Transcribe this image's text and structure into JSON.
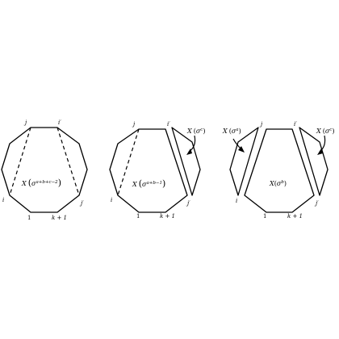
{
  "panels": [
    {
      "vertex_labels": {
        "j": "j",
        "i_prime": "i′",
        "i": "i",
        "j_prime": "j′",
        "one": "1",
        "k_plus_1": "k + 1"
      },
      "region_label": {
        "base": "X",
        "sigma": "σ",
        "exponent": "a+b+c−2"
      }
    },
    {
      "vertex_labels": {
        "j": "j",
        "i_prime": "i′",
        "i": "i",
        "j_prime": "j′",
        "one": "1",
        "k_plus_1": "k + 1"
      },
      "region_label": {
        "base": "X",
        "sigma": "σ",
        "exponent": "a+b−1"
      },
      "piece_label": {
        "base": "X",
        "sigma": "σ",
        "exponent": "c"
      }
    },
    {
      "vertex_labels": {
        "j": "j",
        "i_prime": "i′",
        "i": "i",
        "j_prime": "j′",
        "one": "1",
        "k_plus_1": "k + 1"
      },
      "region_label": {
        "base": "X",
        "sigma": "σ",
        "exponent": "b"
      },
      "left_piece_label": {
        "base": "X",
        "sigma": "σ",
        "exponent": "a"
      },
      "right_piece_label": {
        "base": "X",
        "sigma": "σ",
        "exponent": "c"
      }
    }
  ]
}
